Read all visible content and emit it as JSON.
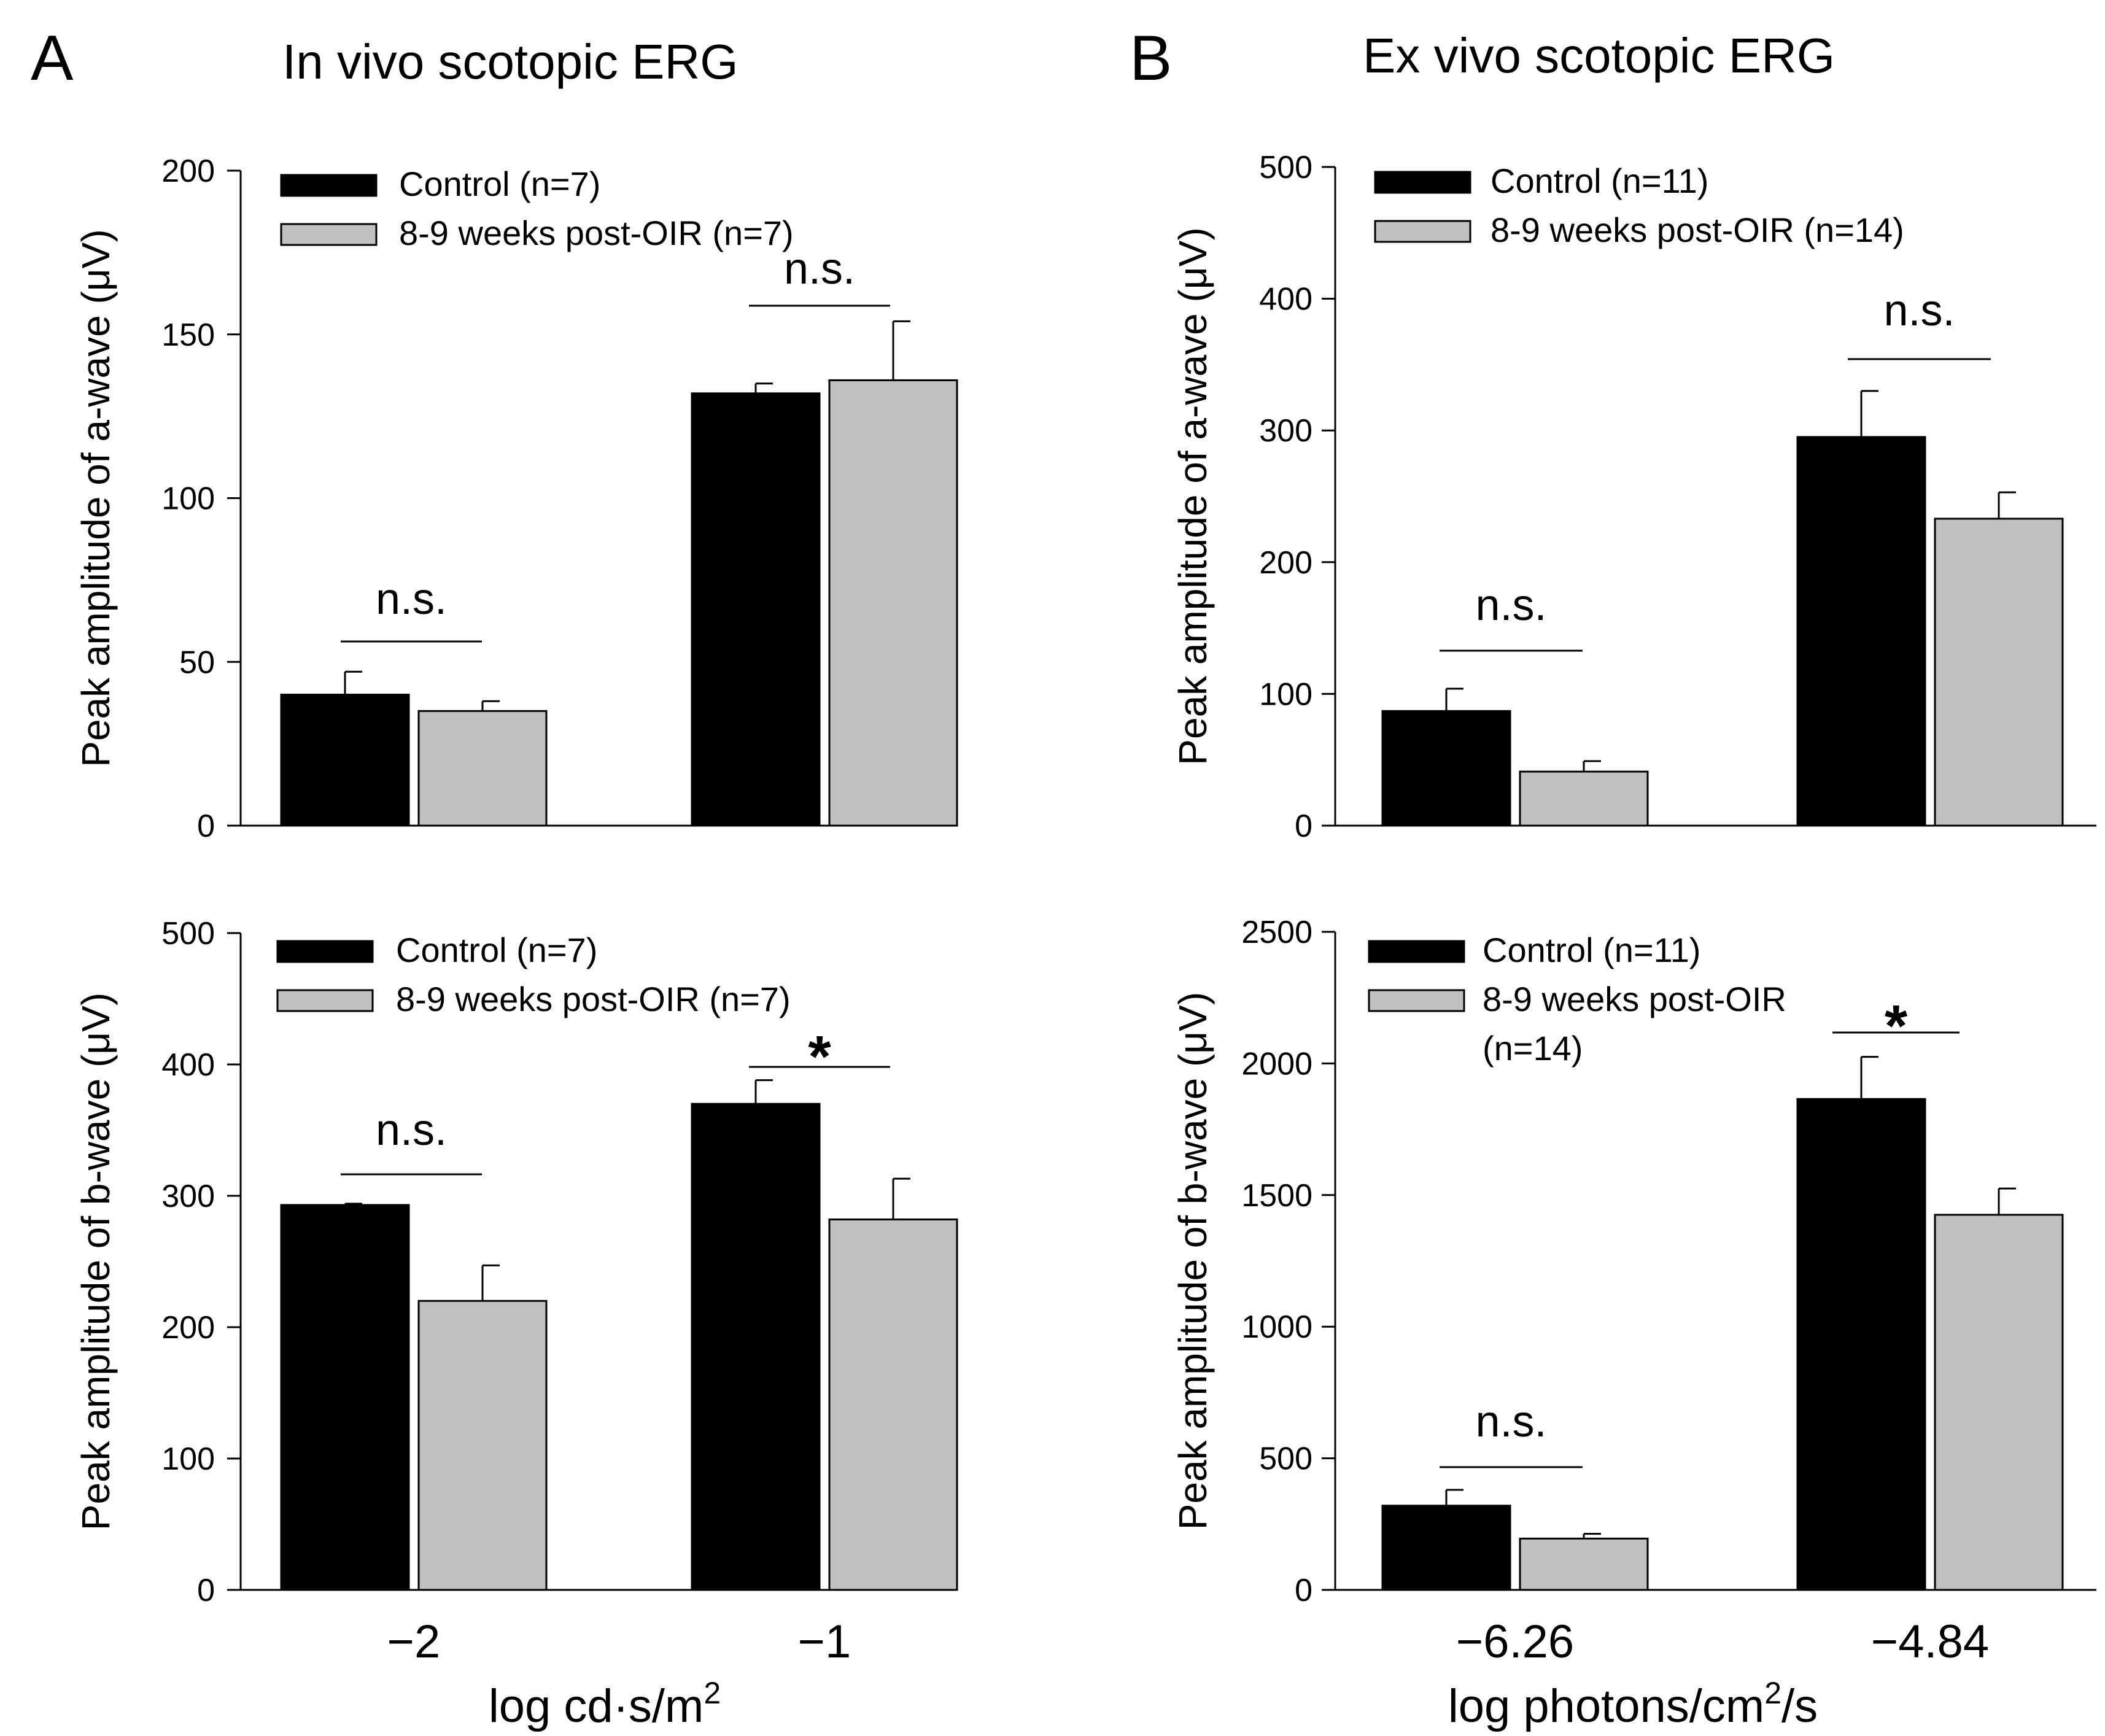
{
  "figure": {
    "panel_a": {
      "letter": "A",
      "title": "In vivo scotopic ERG"
    },
    "panel_b": {
      "letter": "B",
      "title": "Ex vivo scotopic ERG"
    },
    "colors": {
      "control": "#000000",
      "oir": "#c0c0c0",
      "stroke": "#000000"
    },
    "xaxis_a": {
      "label_base": "log cd·s/m",
      "label_sup": "2",
      "label_tail": ""
    },
    "xaxis_b": {
      "label_base": "log photons/cm",
      "label_sup": "2",
      "label_tail": "/s"
    }
  },
  "chart_data": [
    {
      "id": "a_top",
      "type": "bar",
      "categories": [
        "−2",
        "−1"
      ],
      "show_categories": false,
      "ylabel": "Peak amplitude of a-wave (μV)",
      "ylim": [
        0,
        200
      ],
      "yticks": [
        0,
        50,
        100,
        150,
        200
      ],
      "legend": [
        "Control (n=7)",
        "8-9 weeks post-OIR (n=7)"
      ],
      "series": [
        {
          "name": "Control (n=7)",
          "values": [
            40,
            132
          ],
          "errors": [
            7,
            3
          ]
        },
        {
          "name": "8-9 weeks post-OIR (n=7)",
          "values": [
            35,
            136
          ],
          "errors": [
            3,
            18
          ]
        }
      ],
      "annotations": [
        "n.s.",
        "n.s."
      ]
    },
    {
      "id": "a_bottom",
      "type": "bar",
      "categories": [
        "−2",
        "−1"
      ],
      "show_categories": true,
      "ylabel": "Peak amplitude of b-wave (μV)",
      "ylim": [
        0,
        500
      ],
      "yticks": [
        0,
        100,
        200,
        300,
        400,
        500
      ],
      "legend": [
        "Control (n=7)",
        "8-9 weeks post-OIR (n=7)"
      ],
      "series": [
        {
          "name": "Control (n=7)",
          "values": [
            293,
            370
          ],
          "errors": [
            1,
            18
          ]
        },
        {
          "name": "8-9 weeks post-OIR (n=7)",
          "values": [
            220,
            282
          ],
          "errors": [
            27,
            31
          ]
        }
      ],
      "annotations": [
        "n.s.",
        "*"
      ]
    },
    {
      "id": "b_top",
      "type": "bar",
      "categories": [
        "−6.26",
        "−4.84"
      ],
      "show_categories": false,
      "ylabel": "Peak amplitude of a-wave (μV)",
      "ylim": [
        0,
        500
      ],
      "yticks": [
        0,
        100,
        200,
        300,
        400,
        500
      ],
      "legend": [
        "Control (n=11)",
        "8-9 weeks post-OIR (n=14)"
      ],
      "series": [
        {
          "name": "Control (n=11)",
          "values": [
            87,
            295
          ],
          "errors": [
            17,
            35
          ]
        },
        {
          "name": "8-9 weeks post-OIR (n=14)",
          "values": [
            41,
            233
          ],
          "errors": [
            8,
            20
          ]
        }
      ],
      "annotations": [
        "n.s.",
        "n.s."
      ]
    },
    {
      "id": "b_bottom",
      "type": "bar",
      "categories": [
        "−6.26",
        "−4.84"
      ],
      "show_categories": true,
      "ylabel": "Peak amplitude of b-wave (μV)",
      "ylim": [
        0,
        2500
      ],
      "yticks": [
        0,
        500,
        1000,
        1500,
        2000,
        2500
      ],
      "legend": [
        "Control (n=11)",
        "8-9 weeks post-OIR",
        "(n=14)"
      ],
      "series": [
        {
          "name": "Control (n=11)",
          "values": [
            320,
            1865
          ],
          "errors": [
            60,
            160
          ]
        },
        {
          "name": "8-9 weeks post-OIR (n=14)",
          "values": [
            195,
            1425
          ],
          "errors": [
            18,
            100
          ]
        }
      ],
      "annotations": [
        "n.s.",
        "*"
      ]
    }
  ]
}
